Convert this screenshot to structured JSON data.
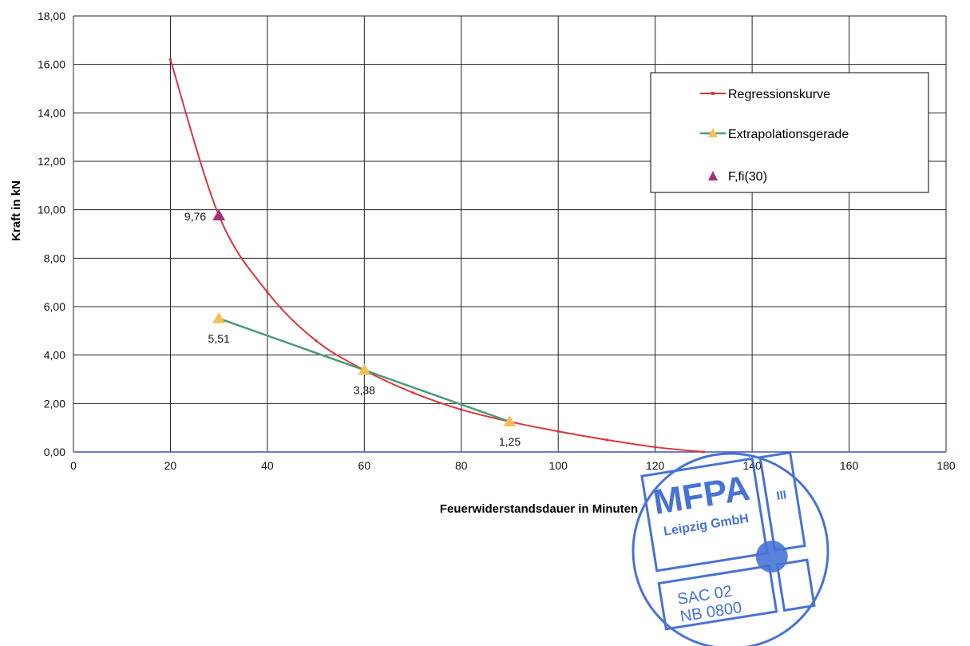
{
  "chart_data": {
    "type": "line",
    "title": "",
    "xlabel": "Feuerwiderstandsdauer in Minuten",
    "ylabel": "Kraft in kN",
    "xlim": [
      0,
      180
    ],
    "ylim": [
      0,
      18
    ],
    "x_ticks": [
      0,
      20,
      40,
      60,
      80,
      100,
      120,
      140,
      160,
      180
    ],
    "x_tick_labels": [
      "0",
      "20",
      "40",
      "60",
      "80",
      "100",
      "120",
      "140",
      "160",
      "180"
    ],
    "y_ticks": [
      0,
      2,
      4,
      6,
      8,
      10,
      12,
      14,
      16,
      18
    ],
    "y_tick_labels": [
      "0,00",
      "2,00",
      "4,00",
      "6,00",
      "8,00",
      "10,00",
      "12,00",
      "14,00",
      "16,00",
      "18,00"
    ],
    "grid": true,
    "legend_position": "top-right",
    "series": [
      {
        "name": "Regressionskurve",
        "color": "#d9363e",
        "marker": "small-dash",
        "x": [
          20,
          30,
          40,
          50,
          60,
          70,
          80,
          90,
          100,
          110,
          120,
          130
        ],
        "y": [
          16.2,
          9.76,
          6.6,
          4.6,
          3.38,
          2.45,
          1.75,
          1.25,
          0.85,
          0.5,
          0.2,
          0.0
        ]
      },
      {
        "name": "Extrapolationsgerade",
        "color": "#4e9a75",
        "marker": "triangle",
        "marker_color": "#f6bf55",
        "x": [
          30,
          60,
          90
        ],
        "y": [
          5.51,
          3.38,
          1.25
        ],
        "labels": [
          "5,51",
          "3,38",
          "1,25"
        ]
      },
      {
        "name": "F,fi(30)",
        "color": "#a3307a",
        "marker": "triangle",
        "x": [
          30
        ],
        "y": [
          9.76
        ],
        "labels": [
          "9,76"
        ]
      }
    ]
  },
  "stamp": {
    "top_text": "MFPA",
    "sub_text": "Leipzig GmbH",
    "side_text": "III",
    "code_line1": "SAC 02",
    "code_line2": "NB  0800",
    "color": "#2f5fd0"
  }
}
